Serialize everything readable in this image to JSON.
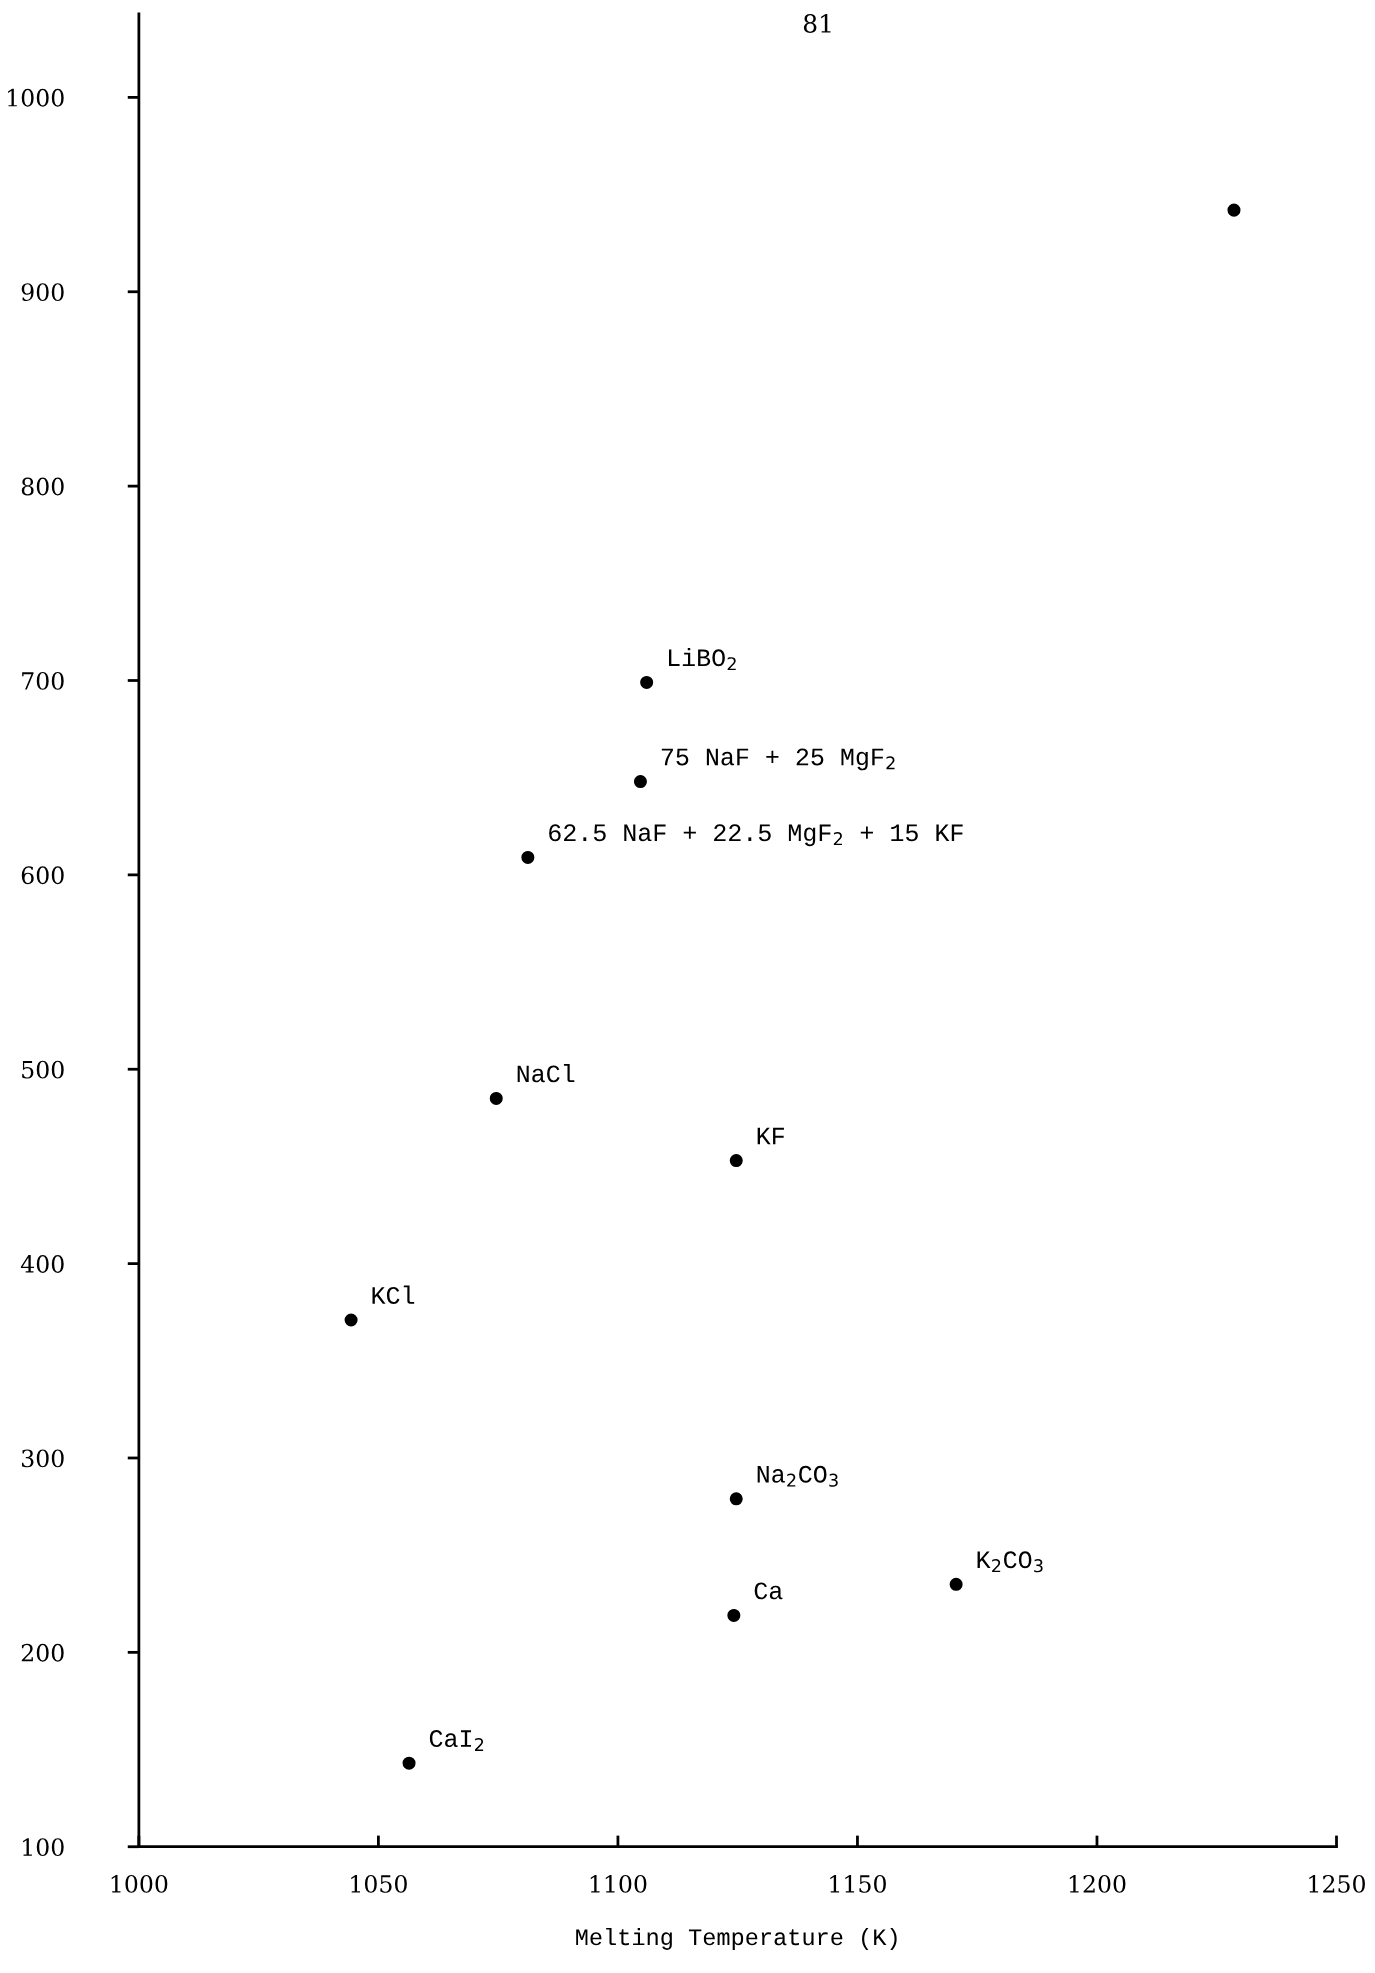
{
  "chart_data": {
    "type": "scatter",
    "xlabel": "Melting Temperature (K)",
    "x": [
      1228.6,
      1106,
      1104.7,
      1081.2,
      1074.6,
      1124.7,
      1044.3,
      1124.7,
      1170.6,
      1124.2,
      1056.4
    ],
    "series": [
      {
        "color": "#000000",
        "values": [
          942,
          699,
          648,
          609,
          485,
          453,
          371,
          279,
          235,
          219,
          143
        ]
      }
    ],
    "marker": "circle",
    "xlim": [
      1000,
      1250
    ],
    "xticks": [
      1000,
      1050,
      1100,
      1150,
      1200,
      1250
    ],
    "ylim": [
      100,
      1043
    ],
    "yticks": [
      100,
      200,
      300,
      400,
      500,
      600,
      700,
      800,
      900,
      1000
    ],
    "grid": false,
    "legend": false,
    "annotations": [
      "81",
      {
        "text": "LiBO$_{2}$",
        "x": 1106,
        "y": 699
      },
      {
        "text": "75 NaF + 25 MgF$_{2}$",
        "x": 1104.7,
        "y": 648
      },
      {
        "text": "62.5 NaF + 22.5 MgF$_{2}$ + 15 KF",
        "x": 1081.2,
        "y": 609
      },
      {
        "text": "NaCl",
        "x": 1074.6,
        "y": 485
      },
      {
        "text": "KF",
        "x": 1124.7,
        "y": 453
      },
      {
        "text": "KCl",
        "x": 1044.3,
        "y": 371
      },
      {
        "text": "Na$_{2}$CO$_{3}$",
        "x": 1124.7,
        "y": 279
      },
      {
        "text": "K$_{2}$CO$_{3}$",
        "x": 1170.6,
        "y": 235
      },
      {
        "text": "Ca",
        "x": 1124.2,
        "y": 219
      },
      {
        "text": "CaI$_{2}$",
        "x": 1056.4,
        "y": 143
      }
    ]
  }
}
